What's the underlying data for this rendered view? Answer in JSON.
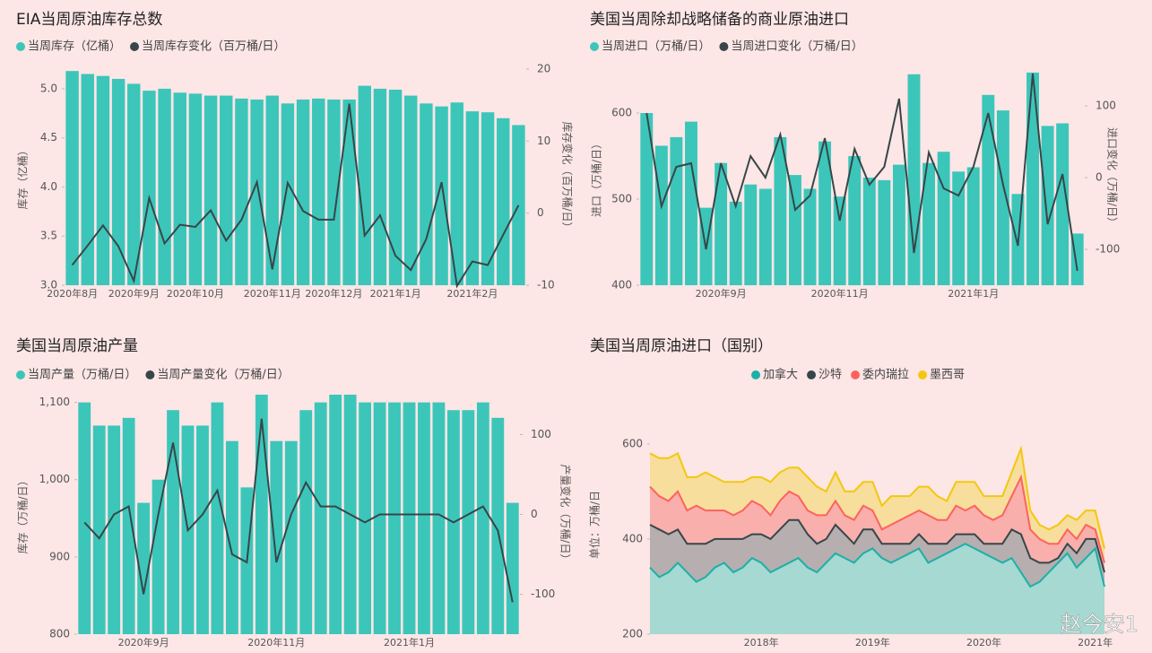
{
  "chart_data": [
    {
      "type": "bar-line",
      "title": "EIA当周原油库存总数",
      "y_label": "库存（亿桶）",
      "y2_label": "库存变化（百万桶/日）",
      "categories": [
        "2020年8月",
        null,
        null,
        null,
        "2020年9月",
        null,
        null,
        null,
        "2020年10月",
        null,
        null,
        null,
        null,
        "2020年11月",
        null,
        null,
        null,
        "2020年12月",
        null,
        null,
        null,
        "2021年1月",
        null,
        null,
        null,
        null,
        "2021年2月",
        null,
        null,
        null
      ],
      "series": [
        {
          "name": "当周库存（亿桶）",
          "color": "#3cc6ba",
          "values": [
            5.18,
            5.15,
            5.13,
            5.1,
            5.05,
            4.98,
            5.0,
            4.96,
            4.95,
            4.93,
            4.93,
            4.9,
            4.89,
            4.93,
            4.85,
            4.89,
            4.9,
            4.89,
            4.89,
            5.03,
            5.0,
            4.99,
            4.93,
            4.85,
            4.82,
            4.86,
            4.77,
            4.76,
            4.7,
            4.63
          ]
        },
        {
          "name": "当周库存变化（百万桶/日）",
          "color": "#374649",
          "axis": "y2",
          "values": [
            -7.2,
            -4.5,
            -1.7,
            -4.6,
            -9.4,
            2.1,
            -4.2,
            -1.6,
            -1.9,
            0.4,
            -3.8,
            -0.9,
            4.3,
            -7.8,
            4.2,
            0.3,
            -0.9,
            -0.9,
            15.2,
            -3.1,
            -0.3,
            -5.9,
            -7.9,
            -3.6,
            4.3,
            -10.1,
            -6.7,
            -7.2,
            -3.0,
            1.1
          ]
        }
      ],
      "ylim": [
        3,
        5.2
      ],
      "yticks": [
        {
          "value": 3,
          "label": "3.0"
        },
        {
          "value": 3.5,
          "label": "3.5"
        },
        {
          "value": 4,
          "label": "4.0"
        },
        {
          "value": 4.5,
          "label": "4.5"
        },
        {
          "value": 5,
          "label": "5.0"
        }
      ],
      "y2lim": [
        -10,
        20
      ],
      "y2ticks": [
        -10,
        0,
        10,
        20
      ]
    },
    {
      "type": "bar-line",
      "title": "美国当周除却战略储备的商业原油进口",
      "y_label": "进口（万桶/日）",
      "y2_label": "进口变化（万桶/日）",
      "categories": [
        null,
        null,
        null,
        null,
        null,
        "2020年9月",
        null,
        null,
        null,
        null,
        null,
        null,
        null,
        "2020年11月",
        null,
        null,
        null,
        null,
        null,
        null,
        null,
        null,
        "2021年1月",
        null,
        null,
        null,
        null,
        null,
        null,
        null
      ],
      "series": [
        {
          "name": "当周进口（万桶/日）",
          "color": "#3cc6ba",
          "values": [
            600,
            562,
            572,
            590,
            490,
            542,
            497,
            517,
            512,
            572,
            528,
            512,
            567,
            503,
            550,
            525,
            522,
            540,
            645,
            542,
            555,
            532,
            537,
            621,
            603,
            506,
            647,
            585,
            588,
            460
          ]
        },
        {
          "name": "当周进口变化（万桶/日）",
          "color": "#374649",
          "axis": "y2",
          "values": [
            90,
            -40,
            15,
            20,
            -100,
            20,
            -40,
            30,
            0,
            60,
            -45,
            -25,
            55,
            -60,
            40,
            -10,
            15,
            110,
            -105,
            35,
            -15,
            -25,
            15,
            90,
            -10,
            -95,
            145,
            -65,
            5,
            -130
          ]
        }
      ],
      "ylim": [
        400,
        650
      ],
      "yticks": [
        400,
        500,
        600
      ],
      "y2lim": [
        -150,
        150
      ],
      "y2ticks": [
        -100,
        0,
        100
      ]
    },
    {
      "type": "bar-line",
      "title": "美国当周原油产量",
      "y_label": "库存（万桶/日）",
      "y2_label": "产量变化（万桶/日）",
      "categories": [
        null,
        null,
        null,
        null,
        "2020年9月",
        null,
        null,
        null,
        null,
        null,
        null,
        null,
        null,
        "2020年11月",
        null,
        null,
        null,
        null,
        null,
        null,
        null,
        null,
        "2021年1月",
        null,
        null,
        null,
        null,
        null,
        null,
        null
      ],
      "series": [
        {
          "name": "当周产量（万桶/日）",
          "color": "#3cc6ba",
          "values": [
            1100,
            1070,
            1070,
            1080,
            970,
            1000,
            1090,
            1070,
            1070,
            1100,
            1050,
            990,
            1110,
            1050,
            1050,
            1090,
            1100,
            1110,
            1110,
            1100,
            1100,
            1100,
            1100,
            1100,
            1100,
            1090,
            1090,
            1100,
            1080,
            970
          ]
        },
        {
          "name": "当周产量变化（万桶/日）",
          "color": "#374649",
          "axis": "y2",
          "values": [
            -10,
            -30,
            0,
            10,
            -100,
            0,
            90,
            -20,
            0,
            30,
            -50,
            -60,
            120,
            -60,
            0,
            40,
            10,
            10,
            0,
            -10,
            0,
            0,
            0,
            0,
            0,
            -10,
            0,
            10,
            -20,
            -110
          ]
        }
      ],
      "ylim": [
        800,
        1110
      ],
      "yticks": [
        800,
        900,
        {
          "value": 1000,
          "label": "1,000"
        },
        {
          "value": 1100,
          "label": "1,100"
        }
      ],
      "y2lim": [
        -150,
        150
      ],
      "y2ticks": [
        -100,
        0,
        100
      ]
    },
    {
      "type": "area",
      "title": "美国当周原油进口（国别）",
      "y_label": "单位：万桶/日",
      "categories": [
        null,
        null,
        null,
        null,
        null,
        null,
        null,
        null,
        null,
        null,
        null,
        null,
        "2018年",
        null,
        null,
        null,
        null,
        null,
        null,
        null,
        null,
        null,
        null,
        null,
        "2019年",
        null,
        null,
        null,
        null,
        null,
        null,
        null,
        null,
        null,
        null,
        null,
        "2020年",
        null,
        null,
        null,
        null,
        null,
        null,
        null,
        null,
        null,
        null,
        null,
        "2021年",
        null
      ],
      "series": [
        {
          "name": "加拿大",
          "color": "#1bb0a8",
          "fill": "#95d6cd",
          "values": [
            340,
            320,
            330,
            350,
            330,
            310,
            320,
            340,
            350,
            330,
            340,
            360,
            350,
            330,
            340,
            350,
            360,
            340,
            330,
            350,
            370,
            360,
            350,
            370,
            380,
            360,
            350,
            360,
            370,
            380,
            350,
            360,
            370,
            380,
            390,
            380,
            370,
            360,
            350,
            360,
            330,
            300,
            310,
            330,
            350,
            370,
            340,
            360,
            380,
            300
          ]
        },
        {
          "name": "沙特",
          "color": "#374649",
          "fill": "#a9a3a4",
          "values": [
            90,
            100,
            80,
            70,
            60,
            80,
            70,
            60,
            50,
            70,
            60,
            50,
            60,
            70,
            80,
            90,
            80,
            70,
            60,
            50,
            60,
            50,
            40,
            50,
            40,
            30,
            40,
            30,
            20,
            30,
            40,
            30,
            20,
            30,
            20,
            30,
            20,
            30,
            40,
            60,
            80,
            60,
            40,
            20,
            10,
            20,
            30,
            40,
            20,
            30
          ]
        },
        {
          "name": "委内瑞拉",
          "color": "#fd625e",
          "fill": "#f8a5a1",
          "values": [
            80,
            70,
            70,
            80,
            70,
            80,
            70,
            60,
            60,
            50,
            60,
            70,
            60,
            50,
            60,
            60,
            50,
            50,
            60,
            50,
            50,
            40,
            50,
            50,
            40,
            30,
            40,
            50,
            60,
            50,
            60,
            50,
            50,
            60,
            50,
            60,
            60,
            50,
            60,
            70,
            120,
            60,
            50,
            40,
            30,
            30,
            30,
            30,
            20,
            20
          ]
        },
        {
          "name": "墨西哥",
          "color": "#f2c80f",
          "fill": "#f6dc8e",
          "values": [
            70,
            80,
            90,
            80,
            70,
            60,
            80,
            70,
            60,
            70,
            60,
            50,
            60,
            70,
            60,
            50,
            60,
            70,
            60,
            50,
            60,
            50,
            60,
            50,
            60,
            50,
            60,
            50,
            40,
            50,
            60,
            50,
            40,
            50,
            60,
            50,
            40,
            50,
            40,
            50,
            60,
            40,
            30,
            30,
            40,
            30,
            40,
            30,
            40,
            30
          ]
        }
      ],
      "ylim": [
        200,
        660
      ],
      "yticks": [
        200,
        400,
        600
      ]
    }
  ],
  "watermark": "赵今安1"
}
